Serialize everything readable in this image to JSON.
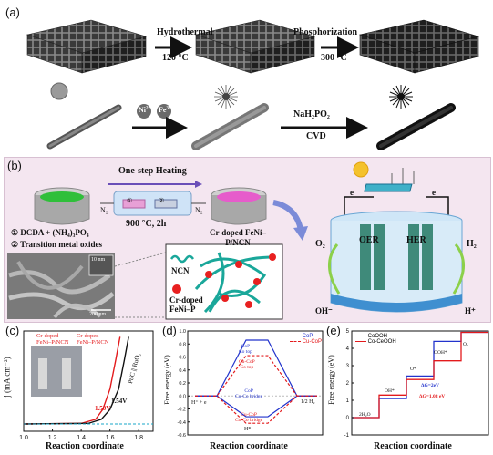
{
  "panels": {
    "a": {
      "letter": "(a)",
      "step1_label": "Hydrothermal",
      "step1_condition": "120 °C",
      "step2_label": "Phosphorization",
      "step2_condition": "300 °C",
      "ion1": "Ni",
      "ion1_charge": "2+",
      "ion2": "Fe",
      "ion2_charge": "3+",
      "step3_label": "NaH₂PO₂",
      "step3_condition": "CVD"
    },
    "b": {
      "letter": "(b)",
      "heating_label": "One-step Heating",
      "condition": "900 °C, 2h",
      "gas_in": "N₂",
      "gas_out": "N₂",
      "marker1": "①",
      "marker2": "②",
      "precursor1": "① DCDA + (NH₄)₃PO₄",
      "precursor2": "② Transition metal oxides",
      "product": "Cr-doped FeNi–P/NCN",
      "sem_scale_large": "200 nm",
      "sem_scale_inset": "10 nm",
      "legend_ncn": "NCN",
      "legend_particle": "Cr-doped FeNi–P",
      "electron_left": "e⁻",
      "electron_right": "e⁻",
      "oer": "OER",
      "her": "HER",
      "o2": "O₂",
      "h2": "H₂",
      "oh": "OH⁻",
      "hplus": "H⁺"
    },
    "c": {
      "letter": "(c)",
      "ylabel": "j (mA cm⁻²)",
      "xlabel": "Reaction coordinate",
      "label_red_1": "Cr-doped FeNi–P/NCN",
      "label_red_2": "Cr-doped FeNi–P/NCN",
      "v1": "1.50V",
      "v2": "1.54V",
      "ref": "Pt/C || RuO₂"
    },
    "d": {
      "letter": "(d)",
      "ylabel": "Free energy (eV)",
      "xlabel": "Reaction coordinate",
      "left_state": "H⁺ + e",
      "right_state": "1/2 H₂",
      "mid_state": "H*",
      "legend_cop": "CoP",
      "legend_cucop": "Cu-CoP",
      "ann_cop_top": "CoP",
      "ann_cop_top_2": "Co top",
      "ann_cucop_top": "Cu-CoP",
      "ann_cucop_top_2": "Co top",
      "ann_cop_bridge": "CoP",
      "ann_cop_bridge_2": "Co-Co bridge",
      "ann_cucop_bridge": "Cu-CoP",
      "ann_cucop_bridge_2": "Co-Co bridge"
    },
    "e": {
      "letter": "(e)",
      "ylabel": "Free energy (eV)",
      "xlabel": "Reaction coordinate",
      "legend_1": "CoOOH",
      "legend_2": "Co-CeOOH",
      "state_h2o": "2H₂O",
      "state_oh": "OH*",
      "state_o": "O*",
      "state_ooh": "OOH*",
      "state_o2": "O₂",
      "delta1": "ΔG=2eV",
      "delta2": "ΔG=1.08 eV"
    }
  },
  "chart_data": [
    {
      "type": "line",
      "panel": "c",
      "xlabel": "Reaction coordinate",
      "ylabel": "j (mA cm⁻²)",
      "xlim": [
        1.0,
        1.9
      ],
      "x_ticks": [
        "1.0",
        "1.2",
        "1.4",
        "1.6",
        "1.8"
      ],
      "series": [
        {
          "name": "Cr-doped FeNi–P/NCN",
          "color": "#e31a1c",
          "x": [
            1.0,
            1.4,
            1.5,
            1.55,
            1.6,
            1.64,
            1.67
          ],
          "y": [
            0,
            1,
            8,
            25,
            60,
            110,
            150
          ]
        },
        {
          "name": "Pt/C || RuO₂",
          "color": "#111111",
          "x": [
            1.0,
            1.45,
            1.54,
            1.6,
            1.66,
            1.7,
            1.73
          ],
          "y": [
            0,
            1,
            8,
            25,
            60,
            110,
            150
          ]
        }
      ]
    },
    {
      "type": "line",
      "panel": "d",
      "xlabel": "Reaction coordinate",
      "ylabel": "Free energy (eV)",
      "ylim": [
        -0.6,
        1.0
      ],
      "y_ticks": [
        "-0.6",
        "-0.4",
        "-0.2",
        "0.0",
        "0.2",
        "0.4",
        "0.6",
        "0.8",
        "1.0"
      ],
      "states": [
        "H⁺ + e",
        "H*",
        "1/2 H₂"
      ],
      "series": [
        {
          "name": "CoP Co top",
          "color": "#2233cc",
          "dash": false,
          "values": [
            0,
            0.86,
            0
          ]
        },
        {
          "name": "Cu-CoP Co top",
          "color": "#e31a1c",
          "dash": true,
          "values": [
            0,
            0.62,
            0
          ]
        },
        {
          "name": "CoP Co-Co bridge",
          "color": "#2233cc",
          "dash": false,
          "values": [
            0,
            -0.32,
            0
          ]
        },
        {
          "name": "Cu-CoP Co-Co bridge",
          "color": "#e31a1c",
          "dash": true,
          "values": [
            0,
            -0.42,
            0
          ]
        }
      ]
    },
    {
      "type": "line",
      "panel": "e",
      "xlabel": "Reaction coordinate",
      "ylabel": "Free energy (eV)",
      "ylim": [
        -1,
        5
      ],
      "y_ticks": [
        "-1",
        "0",
        "1",
        "2",
        "3",
        "4",
        "5"
      ],
      "states": [
        "2H₂O",
        "OH*",
        "O*",
        "OOH*",
        "O₂"
      ],
      "series": [
        {
          "name": "CoOOH",
          "color": "#2233cc",
          "values": [
            0,
            1.1,
            2.4,
            4.4,
            4.92
          ]
        },
        {
          "name": "Co-CeOOH",
          "color": "#e31a1c",
          "values": [
            0,
            1.3,
            2.2,
            3.28,
            4.92
          ]
        }
      ]
    }
  ]
}
